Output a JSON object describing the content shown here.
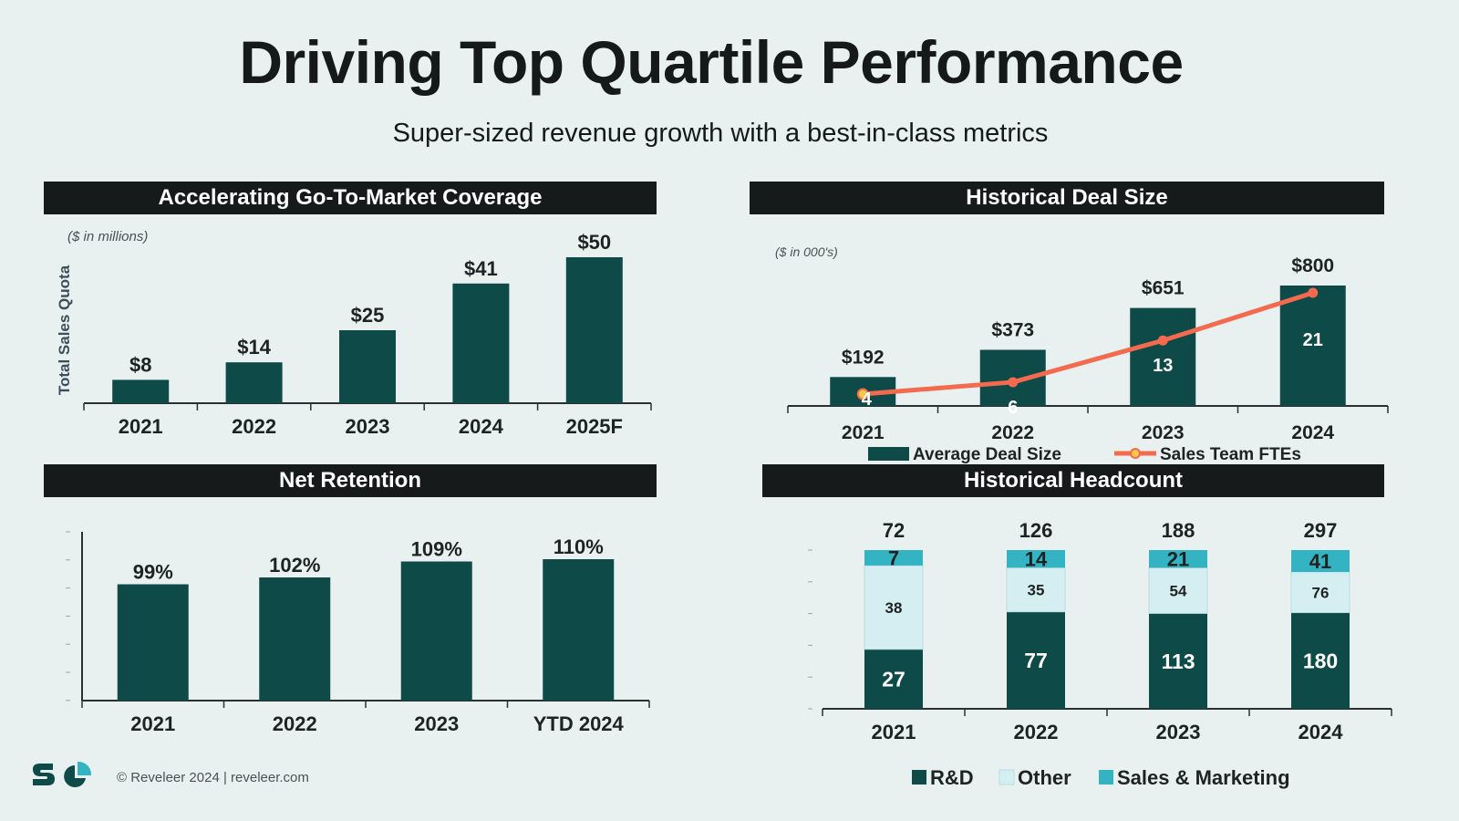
{
  "header": {
    "title": "Driving Top Quartile Performance",
    "subtitle": "Super-sized revenue growth with a best-in-class metrics"
  },
  "colors": {
    "background": "#e8f1f0",
    "header_bg": "#161a1b",
    "bar_dark": "#0e4a48",
    "other_light": "#d5eef1",
    "sales_teal": "#34b3c2",
    "line_orange": "#f46a4e",
    "marker_yellow": "#f7c948"
  },
  "panels": {
    "gtm": {
      "header": "Accelerating Go-To-Market Coverage"
    },
    "deal": {
      "header": "Historical Deal Size"
    },
    "retention": {
      "header": "Net Retention"
    },
    "headcount": {
      "header": "Historical Headcount"
    }
  },
  "chart_data": [
    {
      "id": "gtm",
      "type": "bar",
      "title": "Accelerating Go-To-Market Coverage",
      "note": "($ in millions)",
      "ylabel": "Total Sales Quota",
      "xlabel": "",
      "categories": [
        "2021",
        "2022",
        "2023",
        "2024",
        "2025F"
      ],
      "values": [
        8,
        14,
        25,
        41,
        50
      ],
      "data_labels": [
        "$8",
        "$14",
        "$25",
        "$41",
        "$50"
      ],
      "ylim": [
        0,
        50
      ],
      "grid": false
    },
    {
      "id": "deal",
      "type": "bar",
      "title": "Historical Deal Size",
      "note": "($ in 000's)",
      "xlabel": "",
      "ylabel": "",
      "categories": [
        "2021",
        "2022",
        "2023",
        "2024"
      ],
      "series": [
        {
          "name": "Average Deal Size",
          "type": "bar",
          "values": [
            192,
            373,
            651,
            800
          ],
          "data_labels": [
            "$192",
            "$373",
            "$651",
            "$800"
          ]
        },
        {
          "name": "Sales Team FTEs",
          "type": "line",
          "values": [
            4,
            6,
            13,
            21
          ],
          "data_labels": [
            "4",
            "6",
            "13",
            "21"
          ]
        }
      ],
      "ylim": [
        0,
        800
      ],
      "legend": "bottom",
      "grid": false
    },
    {
      "id": "retention",
      "type": "bar",
      "title": "Net Retention",
      "xlabel": "",
      "ylabel": "",
      "categories": [
        "2021",
        "2022",
        "2023",
        "YTD 2024"
      ],
      "values": [
        99,
        102,
        109,
        110
      ],
      "data_labels": [
        "99%",
        "102%",
        "109%",
        "110%"
      ],
      "ylim": [
        60,
        120
      ],
      "grid": false
    },
    {
      "id": "headcount",
      "type": "bar",
      "stacked": true,
      "title": "Historical Headcount",
      "xlabel": "",
      "ylabel": "",
      "categories": [
        "2021",
        "2022",
        "2023",
        "2024"
      ],
      "totals": [
        72,
        126,
        188,
        297
      ],
      "series": [
        {
          "name": "R&D",
          "values": [
            27,
            77,
            113,
            180
          ]
        },
        {
          "name": "Other",
          "values": [
            38,
            35,
            54,
            76
          ]
        },
        {
          "name": "Sales & Marketing",
          "values": [
            7,
            14,
            21,
            41
          ]
        }
      ],
      "legend": "bottom",
      "grid": false
    }
  ],
  "footer": {
    "logo": "sc-logo",
    "text": "© Reveleer 2024 | reveleer.com"
  }
}
